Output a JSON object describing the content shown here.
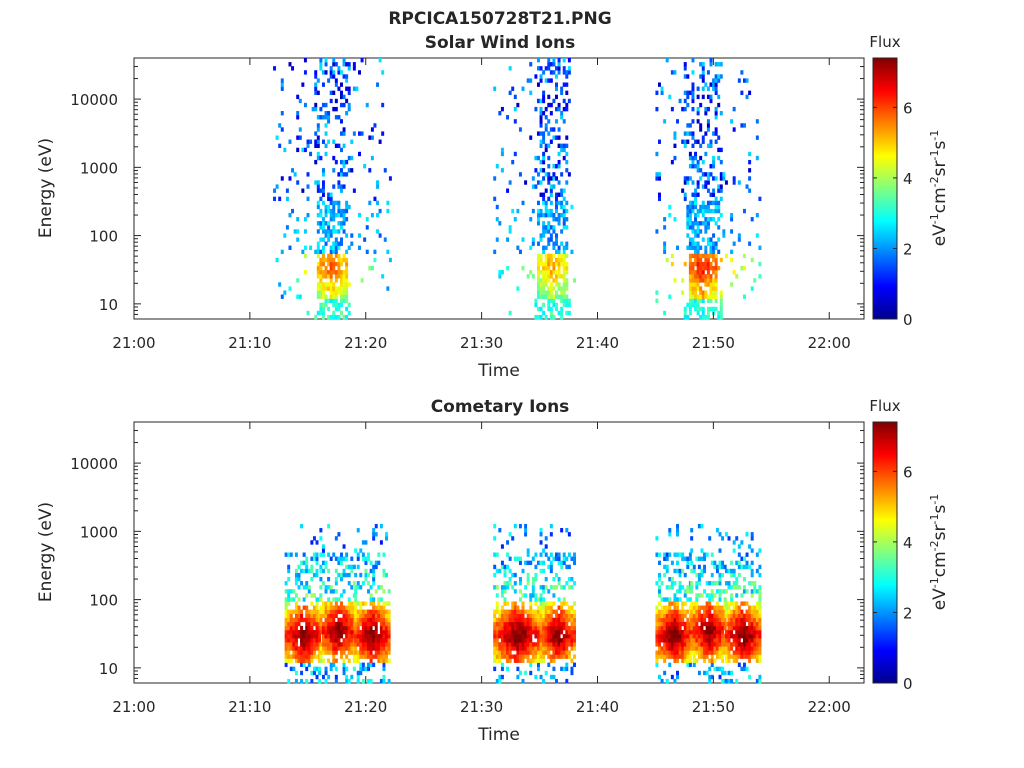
{
  "figure": {
    "title_line1": "RPCICA150728T21.PNG",
    "title_line2": "Solar Wind Ions"
  },
  "colorbar": {
    "label": "Flux",
    "unit_base": "eV",
    "unit_cm": "cm",
    "unit_sr": "sr",
    "unit_s": "s",
    "exp_m1": "-1",
    "exp_m2": "-2",
    "range": [
      0,
      7.4
    ],
    "ticks": [
      0,
      2,
      4,
      6
    ],
    "colormap": "jet",
    "colors": [
      "#00008f",
      "#0000ff",
      "#0080ff",
      "#00ffff",
      "#80ff80",
      "#ffff00",
      "#ff8000",
      "#ff0000",
      "#800000"
    ]
  },
  "chart_data": [
    {
      "type": "heatmap",
      "title": "",
      "xlabel": "Time",
      "ylabel": "Energy (eV)",
      "x_range": [
        "21:00",
        "22:03"
      ],
      "x_ticks": [
        "21:00",
        "21:10",
        "21:20",
        "21:30",
        "21:40",
        "21:50",
        "22:00"
      ],
      "y_scale": "log",
      "y_range": [
        6,
        40000
      ],
      "y_ticks": [
        10,
        100,
        1000,
        10000
      ],
      "y_tick_labels": [
        "10",
        "100",
        "1000",
        "10000"
      ],
      "flux_range": [
        0,
        7.4
      ],
      "bursts": [
        {
          "start": "21:12",
          "end": "21:22",
          "center": "21:17",
          "low_energy_flux": 5.5
        },
        {
          "start": "21:31",
          "end": "21:38",
          "center": "21:36",
          "low_energy_flux": 5.0
        },
        {
          "start": "21:45",
          "end": "21:54",
          "center": "21:49",
          "low_energy_flux": 6.0
        }
      ]
    },
    {
      "type": "heatmap",
      "title": "Cometary Ions",
      "xlabel": "Time",
      "ylabel": "Energy (eV)",
      "x_range": [
        "21:00",
        "22:03"
      ],
      "x_ticks": [
        "21:00",
        "21:10",
        "21:20",
        "21:30",
        "21:40",
        "21:50",
        "22:00"
      ],
      "y_scale": "log",
      "y_range": [
        6,
        40000
      ],
      "y_ticks": [
        10,
        100,
        1000,
        10000
      ],
      "y_tick_labels": [
        "10",
        "100",
        "1000",
        "10000"
      ],
      "flux_range": [
        0,
        7.4
      ],
      "bursts": [
        {
          "start": "21:13",
          "end": "21:16",
          "peak_energy": 30,
          "peak_flux": 7.3
        },
        {
          "start": "21:16",
          "end": "21:19",
          "peak_energy": 35,
          "peak_flux": 7.2
        },
        {
          "start": "21:19",
          "end": "21:22",
          "peak_energy": 30,
          "peak_flux": 7.3
        },
        {
          "start": "21:31",
          "end": "21:35",
          "peak_energy": 30,
          "peak_flux": 7.3
        },
        {
          "start": "21:35",
          "end": "21:38",
          "peak_energy": 30,
          "peak_flux": 7.2
        },
        {
          "start": "21:45",
          "end": "21:48",
          "peak_energy": 30,
          "peak_flux": 7.3
        },
        {
          "start": "21:48",
          "end": "21:51",
          "peak_energy": 35,
          "peak_flux": 7.2
        },
        {
          "start": "21:51",
          "end": "21:54",
          "peak_energy": 30,
          "peak_flux": 7.3
        }
      ]
    }
  ]
}
